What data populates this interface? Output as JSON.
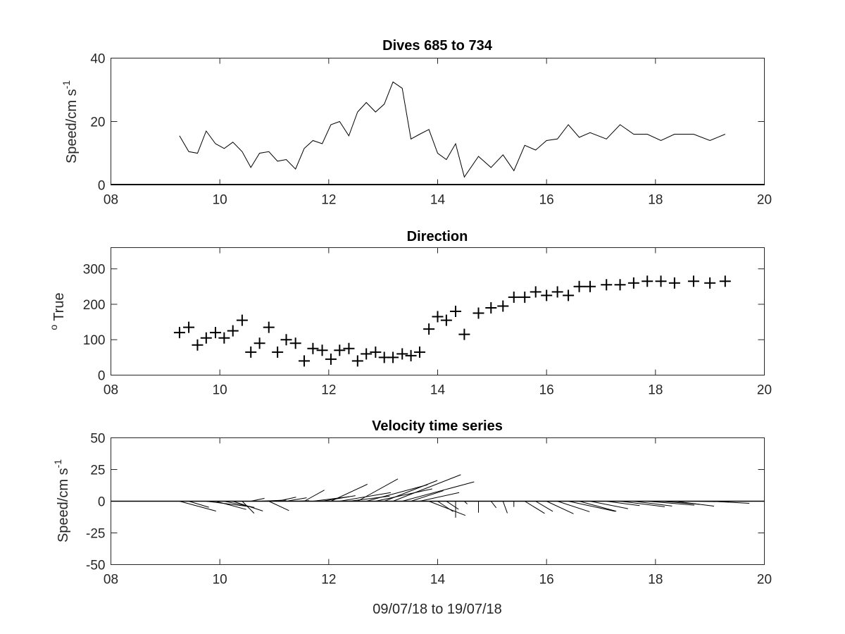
{
  "chart_data": [
    {
      "type": "line",
      "title": "Dives 685 to 734",
      "ylabel": "Speed/cm s",
      "ylabel_sup": "-1",
      "xlim": [
        8,
        20
      ],
      "ylim": [
        0,
        40
      ],
      "xticks": [
        "08",
        "10",
        "12",
        "14",
        "16",
        "18",
        "20"
      ],
      "yticks": [
        "0",
        "20",
        "40"
      ],
      "grid": false,
      "series": [
        {
          "x": [
            9.26,
            9.43,
            9.59,
            9.75,
            9.92,
            10.08,
            10.24,
            10.41,
            10.57,
            10.73,
            10.9,
            11.06,
            11.22,
            11.39,
            11.55,
            11.71,
            11.88,
            12.04,
            12.2,
            12.37,
            12.53,
            12.69,
            12.86,
            13.02,
            13.18,
            13.35,
            13.51,
            13.67,
            13.84,
            14.0,
            14.16,
            14.33,
            14.49,
            14.75,
            14.98,
            15.2,
            15.4,
            15.6,
            15.8,
            16.0,
            16.2,
            16.4,
            16.6,
            16.8,
            17.1,
            17.35,
            17.6,
            17.85,
            18.1,
            18.35,
            18.7,
            19.0,
            19.28
          ],
          "values": [
            15.5,
            10.5,
            10,
            17,
            13,
            11.5,
            13.5,
            10.5,
            5.5,
            10,
            10.5,
            7.5,
            8,
            5,
            11.5,
            14,
            13,
            19,
            20,
            15.5,
            23,
            26,
            23,
            25.5,
            32.5,
            30.5,
            14.5,
            16,
            17.5,
            10,
            8,
            13,
            2.5,
            9,
            5.5,
            9.5,
            4.5,
            12.5,
            11,
            14,
            14.5,
            19,
            15,
            16.5,
            14.5,
            19,
            16,
            16,
            14,
            16,
            16,
            14,
            16
          ]
        }
      ]
    },
    {
      "type": "scatter",
      "title": "Direction",
      "ylabel": "True",
      "ylabel_sup": "o",
      "xlim": [
        8,
        20
      ],
      "ylim": [
        0,
        360
      ],
      "xticks": [
        "08",
        "10",
        "12",
        "14",
        "16",
        "18",
        "20"
      ],
      "yticks": [
        "0",
        "100",
        "200",
        "300"
      ],
      "grid": false,
      "marker": "+",
      "series": [
        {
          "x": [
            9.26,
            9.43,
            9.59,
            9.75,
            9.92,
            10.08,
            10.24,
            10.41,
            10.57,
            10.73,
            10.9,
            11.06,
            11.22,
            11.39,
            11.55,
            11.71,
            11.88,
            12.04,
            12.2,
            12.37,
            12.53,
            12.69,
            12.86,
            13.02,
            13.18,
            13.35,
            13.51,
            13.67,
            13.84,
            14.0,
            14.16,
            14.33,
            14.49,
            14.75,
            14.98,
            15.2,
            15.4,
            15.6,
            15.8,
            16.0,
            16.2,
            16.4,
            16.6,
            16.8,
            17.1,
            17.35,
            17.6,
            17.85,
            18.1,
            18.35,
            18.7,
            19.0,
            19.28
          ],
          "values": [
            120,
            135,
            85,
            105,
            120,
            105,
            125,
            155,
            65,
            90,
            135,
            65,
            100,
            90,
            40,
            75,
            70,
            45,
            70,
            75,
            40,
            60,
            65,
            50,
            50,
            60,
            55,
            65,
            130,
            165,
            155,
            180,
            115,
            175,
            190,
            195,
            220,
            220,
            235,
            225,
            235,
            225,
            250,
            250,
            255,
            255,
            260,
            265,
            265,
            260,
            265,
            260,
            265
          ]
        }
      ]
    },
    {
      "type": "quiver",
      "title": "Velocity time series",
      "ylabel": "Speed/cm s",
      "ylabel_sup": "-1",
      "xlabel": "09/07/18 to 19/07/18",
      "xlim": [
        8,
        20
      ],
      "ylim": [
        -50,
        50
      ],
      "xticks": [
        "08",
        "10",
        "12",
        "14",
        "16",
        "18",
        "20"
      ],
      "yticks": [
        "50",
        "25",
        "0",
        "-25",
        "-50"
      ],
      "grid": false,
      "baseline": 0,
      "vectors": [
        {
          "x": 9.26,
          "u": 13.4,
          "v": -7.8
        },
        {
          "x": 9.43,
          "u": 7.4,
          "v": -4.8
        },
        {
          "x": 9.75,
          "u": 16.4,
          "v": -4.4
        },
        {
          "x": 9.92,
          "u": 11.3,
          "v": -6.5
        },
        {
          "x": 10.08,
          "u": 11.1,
          "v": -4.9
        },
        {
          "x": 10.24,
          "u": 11.0,
          "v": -7.7
        },
        {
          "x": 10.41,
          "u": 4.4,
          "v": -9.5
        },
        {
          "x": 10.57,
          "u": 5.0,
          "v": 2.3
        },
        {
          "x": 10.73,
          "u": 9.8,
          "v": 0.9
        },
        {
          "x": 10.9,
          "u": 7.4,
          "v": -7.4
        },
        {
          "x": 11.06,
          "u": 6.8,
          "v": 3.2
        },
        {
          "x": 11.22,
          "u": 7.5,
          "v": 2.7
        },
        {
          "x": 11.39,
          "u": 5.0,
          "v": 0.4
        },
        {
          "x": 11.55,
          "u": 7.4,
          "v": 8.8
        },
        {
          "x": 11.71,
          "u": 13.5,
          "v": 3.6
        },
        {
          "x": 11.88,
          "u": 12.2,
          "v": 4.4
        },
        {
          "x": 12.04,
          "u": 13.4,
          "v": 13.4
        },
        {
          "x": 12.2,
          "u": 18.8,
          "v": 6.8
        },
        {
          "x": 12.37,
          "u": 15.0,
          "v": 4.0
        },
        {
          "x": 12.53,
          "u": 14.8,
          "v": 17.6
        },
        {
          "x": 12.69,
          "u": 22.5,
          "v": 13.0
        },
        {
          "x": 12.86,
          "u": 20.8,
          "v": 9.7
        },
        {
          "x": 13.02,
          "u": 19.5,
          "v": 16.4
        },
        {
          "x": 13.18,
          "u": 24.9,
          "v": 20.9
        },
        {
          "x": 13.35,
          "u": 26.4,
          "v": 15.3
        },
        {
          "x": 13.51,
          "u": 11.9,
          "v": 8.3
        },
        {
          "x": 13.67,
          "u": 14.5,
          "v": 6.8
        },
        {
          "x": 13.84,
          "u": 13.4,
          "v": -11.2
        },
        {
          "x": 14.0,
          "u": 5.7,
          "v": -8.2
        },
        {
          "x": 14.16,
          "u": 4.5,
          "v": -6.4
        },
        {
          "x": 14.33,
          "u": 0.0,
          "v": -13.0
        },
        {
          "x": 14.49,
          "u": 1.1,
          "v": -2.2
        },
        {
          "x": 14.75,
          "u": 0.0,
          "v": -9.0
        },
        {
          "x": 14.98,
          "u": 1.9,
          "v": -5.2
        },
        {
          "x": 15.2,
          "u": 1.6,
          "v": -9.4
        },
        {
          "x": 15.4,
          "u": 0.0,
          "v": -4.5
        },
        {
          "x": 15.6,
          "u": 7.3,
          "v": -9.6
        },
        {
          "x": 15.8,
          "u": 6.3,
          "v": -8.0
        },
        {
          "x": 16.0,
          "u": 9.9,
          "v": -9.9
        },
        {
          "x": 16.2,
          "u": 11.8,
          "v": -8.3
        },
        {
          "x": 16.4,
          "u": 17.2,
          "v": -8.0
        },
        {
          "x": 16.6,
          "u": 13.6,
          "v": -7.9
        },
        {
          "x": 16.8,
          "u": 13.9,
          "v": -5.9
        },
        {
          "x": 17.1,
          "u": 12.2,
          "v": -3.5
        },
        {
          "x": 17.35,
          "u": 16.4,
          "v": -4.4
        },
        {
          "x": 17.6,
          "u": 14.1,
          "v": -3.8
        },
        {
          "x": 17.85,
          "u": 17.3,
          "v": -3.1
        },
        {
          "x": 18.1,
          "u": 14.4,
          "v": -2.5
        },
        {
          "x": 18.35,
          "u": 14.5,
          "v": -3.9
        },
        {
          "x": 18.7,
          "u": 13.0,
          "v": -0.5
        },
        {
          "x": 19.0,
          "u": 14.5,
          "v": -1.7
        }
      ]
    }
  ]
}
